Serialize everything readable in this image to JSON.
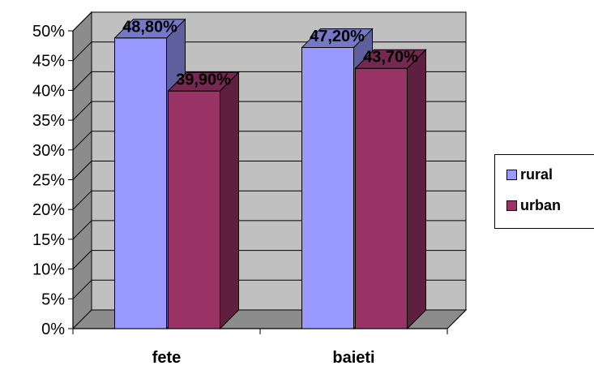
{
  "chart_data": {
    "type": "bar",
    "categories": [
      "fete",
      "baieti"
    ],
    "series": [
      {
        "name": "rural",
        "values": [
          48.8,
          47.2
        ],
        "labels": [
          "48,80%",
          "47,20%"
        ],
        "color": "#9999ff"
      },
      {
        "name": "urban",
        "values": [
          39.9,
          43.7
        ],
        "labels": [
          "39,90%",
          "43,70%"
        ],
        "color": "#993366"
      }
    ],
    "ylim": [
      0,
      50
    ],
    "yticks": [
      "0%",
      "5%",
      "10%",
      "15%",
      "20%",
      "25%",
      "30%",
      "35%",
      "40%",
      "45%",
      "50%"
    ],
    "grid": true,
    "legend_position": "right",
    "wall_color": "#c0c0c0"
  }
}
